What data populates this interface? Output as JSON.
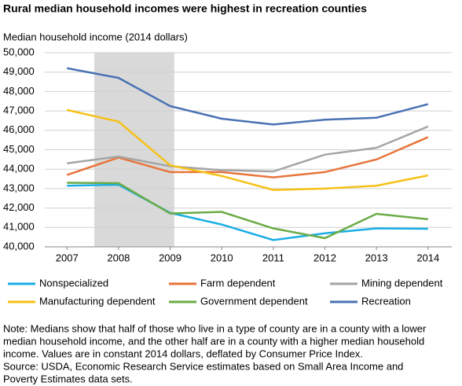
{
  "chart_data": {
    "type": "line",
    "title": "Rural median household incomes were highest in recreation counties",
    "y_label": "Median household income (2014 dollars)",
    "x": [
      2007,
      2008,
      2009,
      2010,
      2011,
      2012,
      2013,
      2014
    ],
    "xlim": [
      2006.57,
      2014.46
    ],
    "xticks": [
      2007,
      2008,
      2009,
      2010,
      2011,
      2012,
      2013,
      2014
    ],
    "ylim": [
      40000,
      50000
    ],
    "yticks": [
      {
        "value": 40000,
        "label": "40,000"
      },
      {
        "value": 41000,
        "label": "41,000"
      },
      {
        "value": 42000,
        "label": "42,000"
      },
      {
        "value": 43000,
        "label": "43,000"
      },
      {
        "value": 44000,
        "label": "44,000"
      },
      {
        "value": 45000,
        "label": "45,000"
      },
      {
        "value": 46000,
        "label": "46,000"
      },
      {
        "value": 47000,
        "label": "47,000"
      },
      {
        "value": 48000,
        "label": "48,000"
      },
      {
        "value": 49000,
        "label": "49,000"
      },
      {
        "value": 50000,
        "label": "50,000"
      }
    ],
    "grid": true,
    "shaded_x": [
      2007.53,
      2009.08
    ],
    "shade_color": "#d9d9d9",
    "series": [
      {
        "name": "Nonspecialized",
        "color": "#1aaee5",
        "values": [
          43150,
          43200,
          41750,
          41150,
          40350,
          40700,
          40950,
          40930
        ]
      },
      {
        "name": "Farm dependent",
        "color": "#e8743b",
        "values": [
          43700,
          44600,
          43850,
          43850,
          43580,
          43850,
          44500,
          45650
        ]
      },
      {
        "name": "Mining dependent",
        "color": "#a5a5a5",
        "values": [
          44300,
          44650,
          44150,
          43950,
          43880,
          44750,
          45100,
          46200
        ]
      },
      {
        "name": "Manufacturing dependent",
        "color": "#f5c117",
        "values": [
          47050,
          46450,
          44200,
          43650,
          42930,
          43000,
          43150,
          43680
        ]
      },
      {
        "name": "Government dependent",
        "color": "#6aab46",
        "values": [
          43300,
          43280,
          41720,
          41800,
          40950,
          40450,
          41700,
          41420
        ]
      },
      {
        "name": "Recreation",
        "color": "#4a73b4",
        "values": [
          49200,
          48700,
          47250,
          46600,
          46300,
          46550,
          46650,
          47350
        ]
      }
    ],
    "note": [
      "Note: Medians show that half of those who live in a type of county are in a county with a lower",
      "median household income, and the other half are in a county with a higher median household",
      "income. Values are in constant 2014 dollars, deflated by Consumer Price Index."
    ],
    "source": [
      "Source: USDA, Economic Research Service estimates based on Small Area Income and",
      "Poverty Estimates data sets."
    ]
  }
}
